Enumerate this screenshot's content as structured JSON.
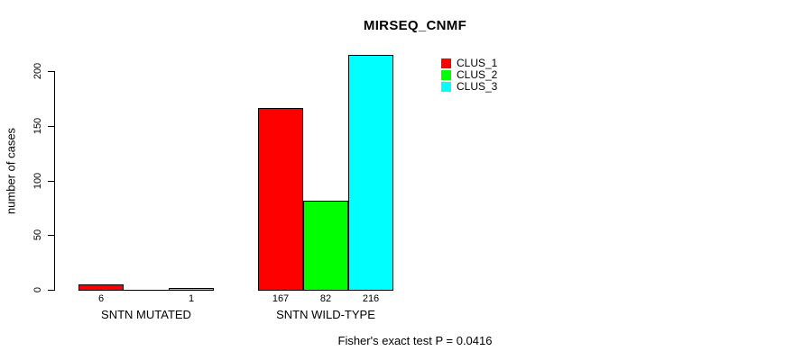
{
  "title": "MIRSEQ_CNMF",
  "caption": "Fisher's exact test P = 0.0416",
  "colors": {
    "clus_1": "#FF0000",
    "clus_2": "#00FF00",
    "clus_3": "#00FFFF",
    "axis": "#000000",
    "background": "#FFFFFF"
  },
  "chart_data": {
    "type": "bar",
    "title": "MIRSEQ_CNMF",
    "xlabel": "",
    "ylabel": "number of cases",
    "categories": [
      "SNTN MUTATED",
      "SNTN WILD-TYPE"
    ],
    "series": [
      {
        "name": "CLUS_1",
        "color": "#FF0000",
        "values": [
          6,
          167
        ]
      },
      {
        "name": "CLUS_2",
        "color": "#00FF00",
        "values": [
          0,
          82
        ]
      },
      {
        "name": "CLUS_3",
        "color": "#00FFFF",
        "values": [
          1,
          216
        ]
      }
    ],
    "bar_value_labels": [
      [
        "6",
        "",
        "1"
      ],
      [
        "167",
        "82",
        "216"
      ]
    ],
    "yticks": [
      0,
      50,
      100,
      150,
      200
    ],
    "ylim": [
      0,
      200
    ],
    "grid": false,
    "legend_position": "inside-top-right",
    "annotation": "Fisher's exact test P = 0.0416"
  }
}
